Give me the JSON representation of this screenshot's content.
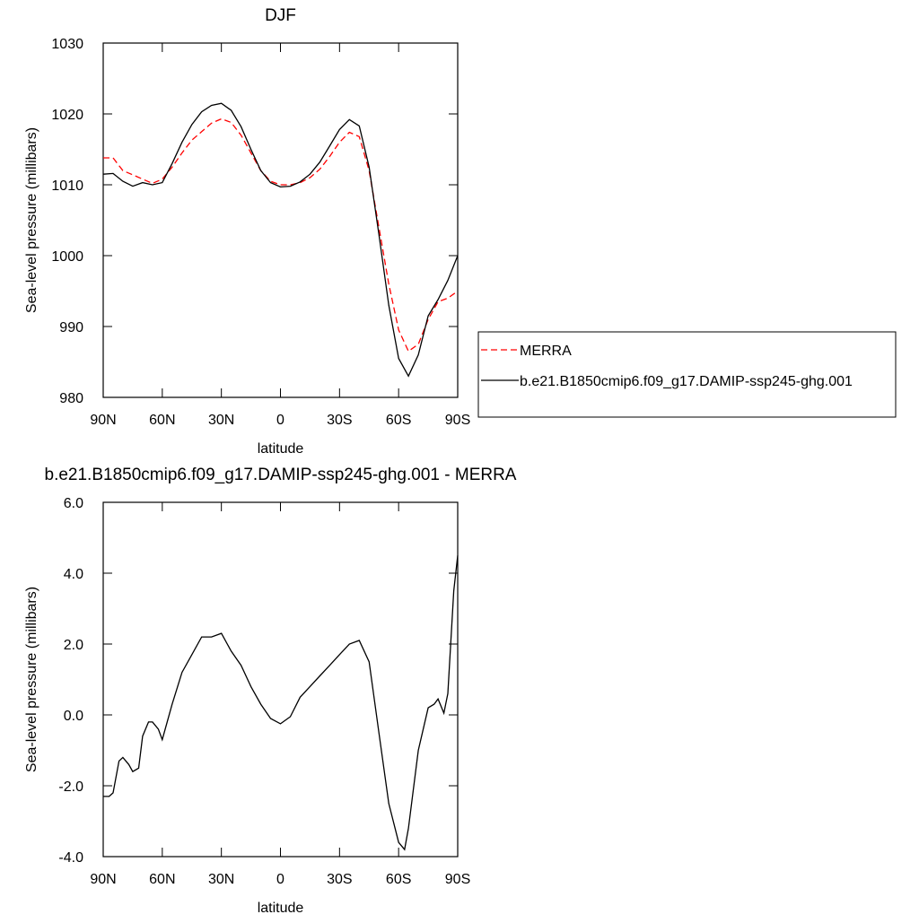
{
  "chart_data": [
    {
      "type": "line",
      "title": "DJF",
      "xlabel": "latitude",
      "ylabel": "Sea-level pressure (millibars)",
      "xlim": [
        90,
        -90
      ],
      "xticks": [
        {
          "value": 90,
          "label": "90N"
        },
        {
          "value": 60,
          "label": "60N"
        },
        {
          "value": 30,
          "label": "30N"
        },
        0,
        {
          "value": -30,
          "label": "30S"
        },
        {
          "value": -60,
          "label": "60S"
        },
        {
          "value": -90,
          "label": "90S"
        }
      ],
      "ylim": [
        980,
        1030
      ],
      "yticks": [
        980,
        990,
        1000,
        1010,
        1020,
        1030
      ],
      "x": [
        90,
        85,
        80,
        75,
        70,
        65,
        60,
        55,
        50,
        45,
        40,
        35,
        30,
        25,
        20,
        15,
        10,
        5,
        0,
        -5,
        -10,
        -15,
        -20,
        -25,
        -30,
        -35,
        -40,
        -45,
        -50,
        -55,
        -60,
        -65,
        -70,
        -75,
        -80,
        -85,
        -90
      ],
      "legend": "right",
      "series": [
        {
          "name": "MERRA",
          "color": "#ff0000",
          "dash": true,
          "values": [
            1013.8,
            1013.8,
            1012.0,
            1011.4,
            1010.8,
            1010.2,
            1010.8,
            1012.5,
            1014.5,
            1016.3,
            1017.5,
            1018.7,
            1019.3,
            1018.8,
            1017.0,
            1014.5,
            1012.0,
            1010.5,
            1010.0,
            1010.0,
            1010.3,
            1011.0,
            1012.2,
            1014.0,
            1016.0,
            1017.4,
            1016.8,
            1012.0,
            1004.0,
            996.0,
            989.5,
            986.5,
            987.5,
            991.0,
            993.5,
            994.0,
            995.0
          ]
        },
        {
          "name": "b.e21.B1850cmip6.f09_g17.DAMIP-ssp245-ghg.001",
          "color": "#000000",
          "dash": false,
          "values": [
            1011.5,
            1011.6,
            1010.5,
            1009.8,
            1010.3,
            1010.0,
            1010.3,
            1013.0,
            1016.0,
            1018.5,
            1020.3,
            1021.2,
            1021.5,
            1020.5,
            1018.2,
            1015.0,
            1012.0,
            1010.3,
            1009.7,
            1009.8,
            1010.4,
            1011.5,
            1013.2,
            1015.5,
            1017.8,
            1019.2,
            1018.3,
            1012.5,
            1003.0,
            993.0,
            985.5,
            983.0,
            986.0,
            991.5,
            993.8,
            996.5,
            1000.0
          ]
        }
      ]
    },
    {
      "type": "line",
      "title": "b.e21.B1850cmip6.f09_g17.DAMIP-ssp245-ghg.001 - MERRA",
      "xlabel": "latitude",
      "ylabel": "Sea-level pressure (millibars)",
      "xlim": [
        90,
        -90
      ],
      "xticks": [
        {
          "value": 90,
          "label": "90N"
        },
        {
          "value": 60,
          "label": "60N"
        },
        {
          "value": 30,
          "label": "30N"
        },
        0,
        {
          "value": -30,
          "label": "30S"
        },
        {
          "value": -60,
          "label": "60S"
        },
        {
          "value": -90,
          "label": "90S"
        }
      ],
      "ylim": [
        -4,
        6
      ],
      "yticks": [
        {
          "value": -4,
          "label": "-4.0"
        },
        {
          "value": -2,
          "label": "-2.0"
        },
        {
          "value": 0,
          "label": "0.0"
        },
        {
          "value": 2,
          "label": "2.0"
        },
        {
          "value": 4,
          "label": "4.0"
        },
        {
          "value": 6,
          "label": "6.0"
        }
      ],
      "x": [
        90,
        87,
        85,
        82,
        80,
        77,
        75,
        72,
        70,
        67,
        65,
        62,
        60,
        55,
        50,
        45,
        40,
        35,
        30,
        25,
        20,
        15,
        10,
        5,
        0,
        -5,
        -10,
        -15,
        -20,
        -25,
        -30,
        -35,
        -40,
        -45,
        -50,
        -55,
        -60,
        -63,
        -65,
        -70,
        -75,
        -78,
        -80,
        -83,
        -85,
        -88,
        -90
      ],
      "series": [
        {
          "color": "#000000",
          "dash": false,
          "values": [
            -2.3,
            -2.3,
            -2.2,
            -1.3,
            -1.2,
            -1.4,
            -1.6,
            -1.5,
            -0.6,
            -0.2,
            -0.2,
            -0.4,
            -0.7,
            0.3,
            1.2,
            1.7,
            2.2,
            2.2,
            2.3,
            1.8,
            1.4,
            0.8,
            0.3,
            -0.1,
            -0.25,
            -0.05,
            0.5,
            0.8,
            1.1,
            1.4,
            1.7,
            2.0,
            2.1,
            1.5,
            -0.5,
            -2.5,
            -3.6,
            -3.8,
            -3.2,
            -1.0,
            0.2,
            0.3,
            0.45,
            0.05,
            0.6,
            3.5,
            4.5
          ]
        }
      ]
    }
  ]
}
